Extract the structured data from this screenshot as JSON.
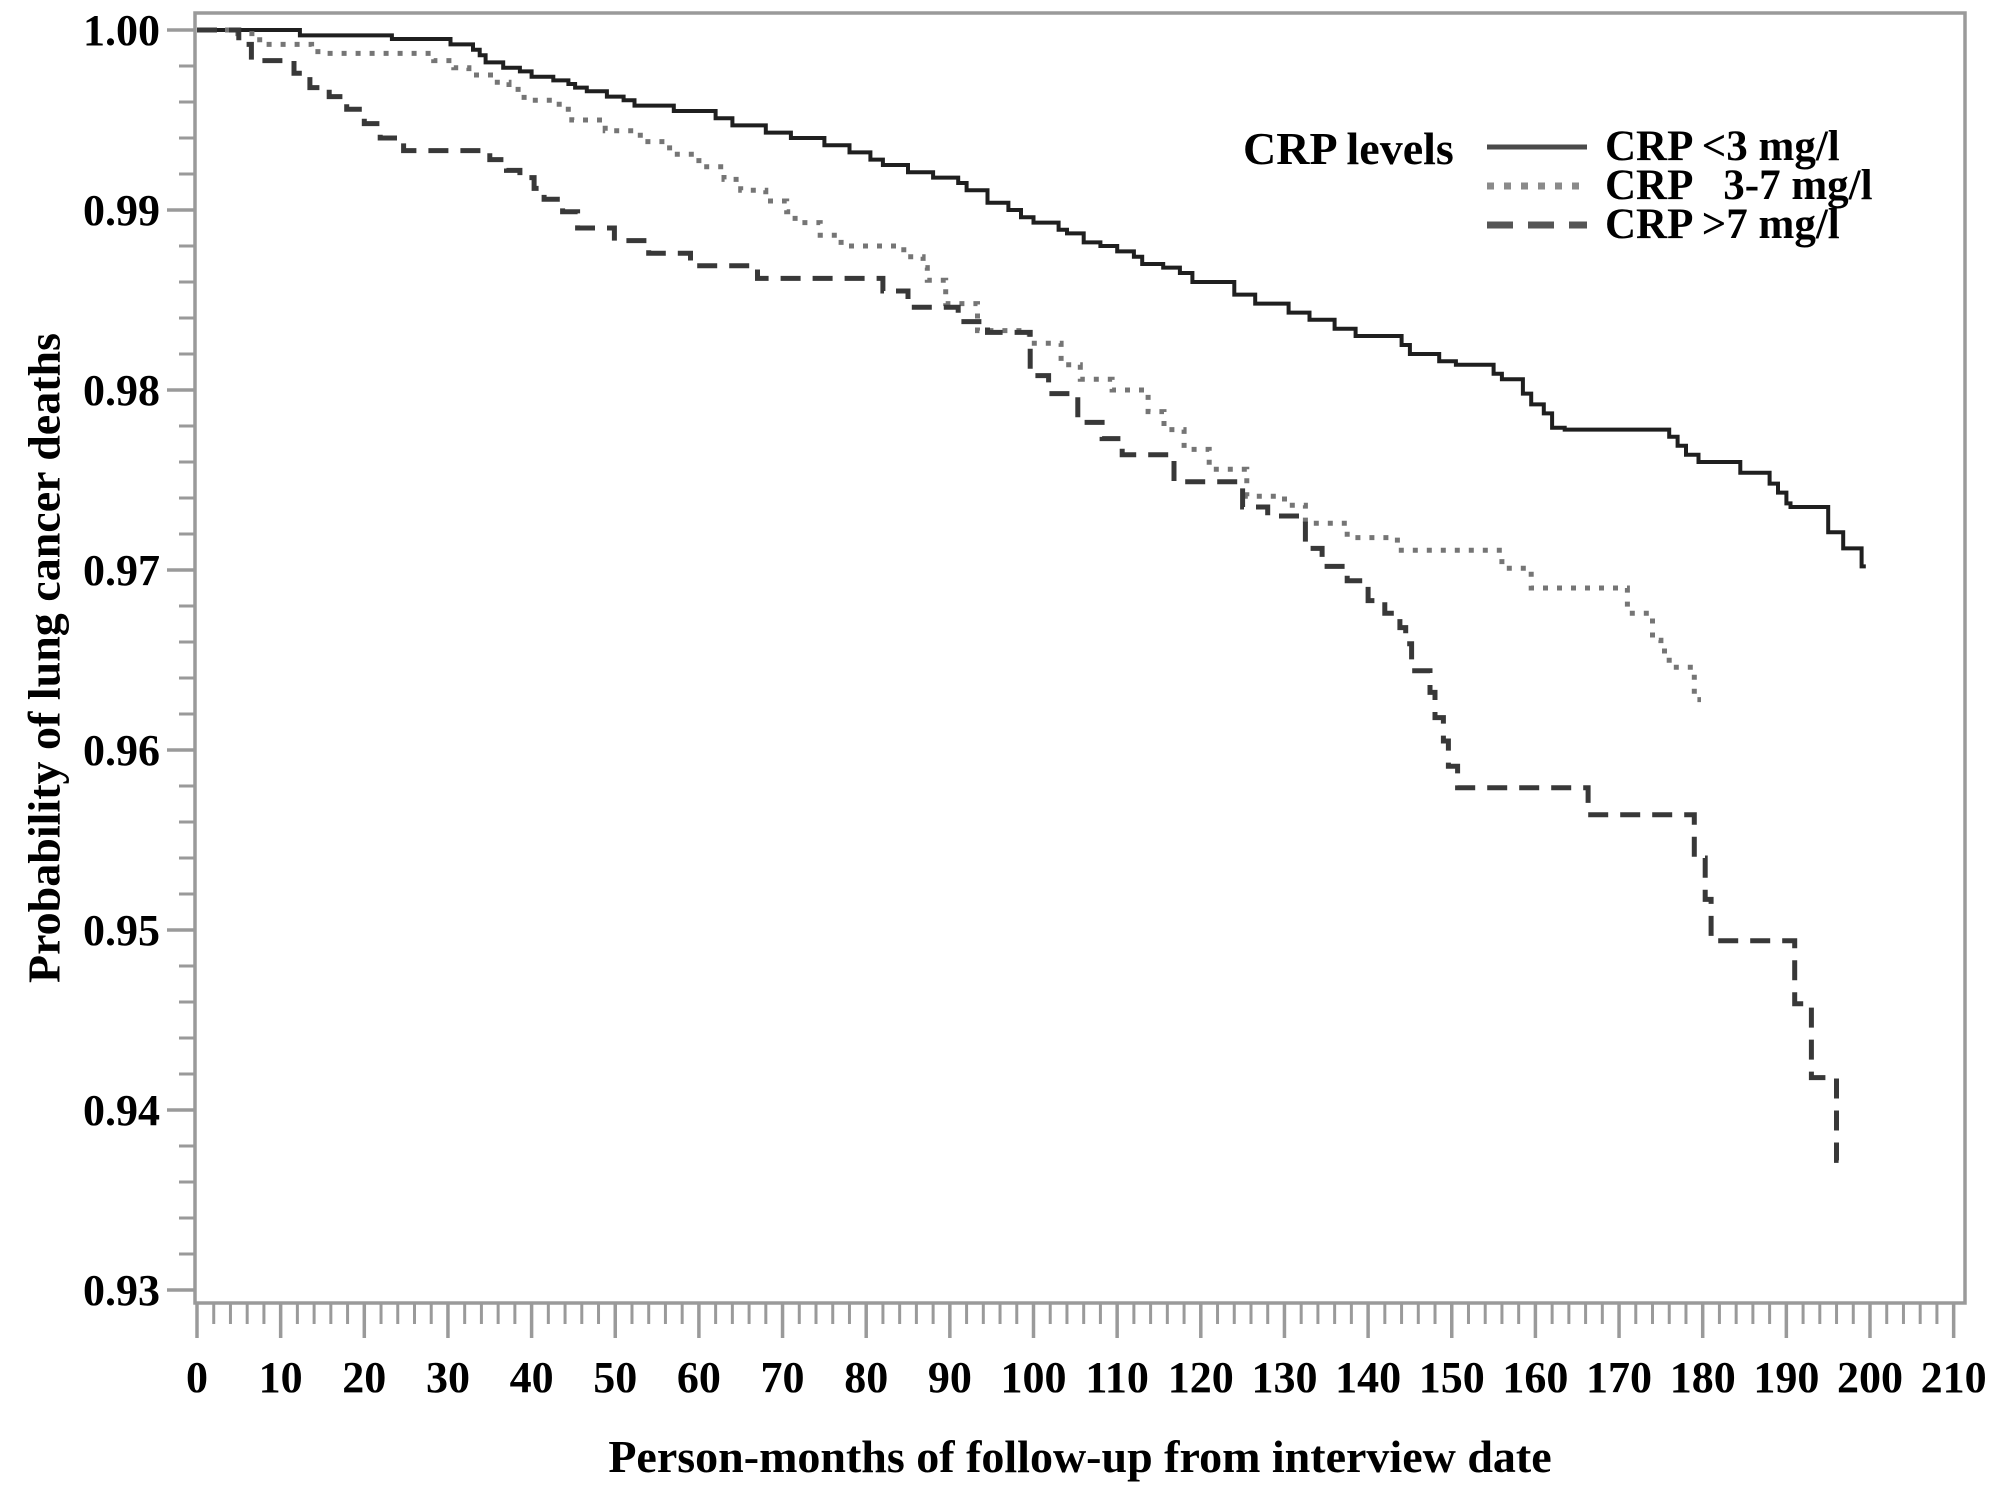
{
  "chart_data": {
    "type": "line",
    "subtype": "kaplan-meier-step",
    "title": "",
    "xlabel": "Person-months of follow-up from interview date",
    "ylabel": "Probability of lung cancer deaths",
    "legend_title": "CRP levels",
    "legend_position": "top-right",
    "grid": false,
    "xlim": [
      0,
      210
    ],
    "ylim": [
      0.93,
      1.0
    ],
    "x_major_step": 10,
    "x_minor_step": 2,
    "y_major_step": 0.01,
    "y_minor_step": 0.002,
    "axis_color": "#9a9a9a",
    "text_color": "#000000",
    "x_tick_labels": [
      "0",
      "10",
      "20",
      "30",
      "40",
      "50",
      "60",
      "70",
      "80",
      "90",
      "100",
      "110",
      "120",
      "130",
      "140",
      "150",
      "160",
      "170",
      "180",
      "190",
      "200",
      "210"
    ],
    "y_tick_labels": [
      "1.00",
      "0.99",
      "0.98",
      "0.97",
      "0.96",
      "0.95",
      "0.94",
      "0.93"
    ],
    "series": [
      {
        "id": "crp-lt3",
        "name": "CRP <3 mg/l",
        "style": "solid",
        "color": "#1f1f1f",
        "points": [
          [
            0,
            1.0
          ],
          [
            12.3,
            0.9997
          ],
          [
            23.3,
            0.9995
          ],
          [
            30.3,
            0.9992
          ],
          [
            33,
            0.9989
          ],
          [
            33.8,
            0.9986
          ],
          [
            34.5,
            0.9982
          ],
          [
            36.6,
            0.9979
          ],
          [
            38.6,
            0.9977
          ],
          [
            40,
            0.9974
          ],
          [
            42.6,
            0.9972
          ],
          [
            44.4,
            0.997
          ],
          [
            45.2,
            0.9968
          ],
          [
            46.6,
            0.9966
          ],
          [
            49,
            0.9963
          ],
          [
            51,
            0.9961
          ],
          [
            52.3,
            0.9958
          ],
          [
            57,
            0.9955
          ],
          [
            62,
            0.9951
          ],
          [
            64,
            0.9947
          ],
          [
            68,
            0.9943
          ],
          [
            71,
            0.994
          ],
          [
            75,
            0.9936
          ],
          [
            78,
            0.9932
          ],
          [
            80.5,
            0.9928
          ],
          [
            82,
            0.9925
          ],
          [
            85,
            0.9921
          ],
          [
            88,
            0.9918
          ],
          [
            91,
            0.9915
          ],
          [
            92,
            0.9911
          ],
          [
            94.5,
            0.9904
          ],
          [
            97,
            0.99
          ],
          [
            98.5,
            0.9896
          ],
          [
            100,
            0.9893
          ],
          [
            103,
            0.9889
          ],
          [
            104,
            0.9887
          ],
          [
            106,
            0.9882
          ],
          [
            108,
            0.988
          ],
          [
            110,
            0.9877
          ],
          [
            112,
            0.9874
          ],
          [
            113,
            0.987
          ],
          [
            115.5,
            0.9868
          ],
          [
            117.5,
            0.9865
          ],
          [
            119,
            0.986
          ],
          [
            124,
            0.9853
          ],
          [
            126.5,
            0.9848
          ],
          [
            130.5,
            0.9843
          ],
          [
            133,
            0.9839
          ],
          [
            136,
            0.9834
          ],
          [
            138.5,
            0.983
          ],
          [
            144,
            0.9825
          ],
          [
            145,
            0.982
          ],
          [
            148.5,
            0.9816
          ],
          [
            150.5,
            0.9814
          ],
          [
            155,
            0.9809
          ],
          [
            156,
            0.9806
          ],
          [
            158.5,
            0.9798
          ],
          [
            159.5,
            0.9792
          ],
          [
            161,
            0.9787
          ],
          [
            162,
            0.9779
          ],
          [
            163.5,
            0.9778
          ],
          [
            176,
            0.9774
          ],
          [
            177,
            0.9769
          ],
          [
            178,
            0.9764
          ],
          [
            179.5,
            0.976
          ],
          [
            184.5,
            0.9754
          ],
          [
            188,
            0.9748
          ],
          [
            189,
            0.9743
          ],
          [
            190,
            0.9737
          ],
          [
            190.5,
            0.9735
          ],
          [
            195,
            0.9721
          ],
          [
            196.8,
            0.9712
          ],
          [
            199,
            0.9702
          ],
          [
            199.5,
            0.9702
          ]
        ]
      },
      {
        "id": "crp-3to7",
        "name": "CRP   3-7 mg/l",
        "style": "dotted",
        "color": "#757575",
        "points": [
          [
            0,
            1.0
          ],
          [
            4.3,
            0.9998
          ],
          [
            7.5,
            0.9992
          ],
          [
            13.7,
            0.9988
          ],
          [
            15.3,
            0.9987
          ],
          [
            28.3,
            0.9983
          ],
          [
            30.7,
            0.9979
          ],
          [
            32.5,
            0.9975
          ],
          [
            35.5,
            0.9971
          ],
          [
            37.3,
            0.9967
          ],
          [
            39.1,
            0.9961
          ],
          [
            43.3,
            0.9956
          ],
          [
            44.8,
            0.995
          ],
          [
            48.8,
            0.9944
          ],
          [
            53,
            0.9938
          ],
          [
            56.5,
            0.9931
          ],
          [
            60,
            0.9924
          ],
          [
            63,
            0.9917
          ],
          [
            65,
            0.9911
          ],
          [
            68,
            0.9905
          ],
          [
            70.5,
            0.9899
          ],
          [
            71.5,
            0.9893
          ],
          [
            74.5,
            0.9886
          ],
          [
            77,
            0.988
          ],
          [
            84.5,
            0.9874
          ],
          [
            86.8,
            0.9868
          ],
          [
            87.3,
            0.9861
          ],
          [
            89.5,
            0.9848
          ],
          [
            93.3,
            0.9833
          ],
          [
            99.5,
            0.9826
          ],
          [
            103.3,
            0.9814
          ],
          [
            105.6,
            0.9806
          ],
          [
            109.4,
            0.98
          ],
          [
            113.7,
            0.9788
          ],
          [
            115.6,
            0.9778
          ],
          [
            118,
            0.9767
          ],
          [
            121,
            0.9756
          ],
          [
            125.5,
            0.9741
          ],
          [
            130,
            0.9736
          ],
          [
            132.5,
            0.9726
          ],
          [
            137.5,
            0.9718
          ],
          [
            143.5,
            0.9711
          ],
          [
            156,
            0.9701
          ],
          [
            159.5,
            0.969
          ],
          [
            171,
            0.9676
          ],
          [
            174,
            0.9661
          ],
          [
            175,
            0.9655
          ],
          [
            176,
            0.9646
          ],
          [
            179,
            0.9628
          ],
          [
            179.8,
            0.9628
          ]
        ]
      },
      {
        "id": "crp-gt7",
        "name": "CRP >7 mg/l",
        "style": "dashed",
        "color": "#383838",
        "points": [
          [
            0,
            1.0
          ],
          [
            5,
            0.9992
          ],
          [
            6.5,
            0.9983
          ],
          [
            11.6,
            0.9976
          ],
          [
            13.5,
            0.9968
          ],
          [
            15.8,
            0.9963
          ],
          [
            17.9,
            0.9956
          ],
          [
            20,
            0.9948
          ],
          [
            21.9,
            0.994
          ],
          [
            24.7,
            0.9933
          ],
          [
            35,
            0.9928
          ],
          [
            37,
            0.9922
          ],
          [
            38.6,
            0.9918
          ],
          [
            40.3,
            0.9912
          ],
          [
            41.5,
            0.9906
          ],
          [
            43.7,
            0.9899
          ],
          [
            45.5,
            0.989
          ],
          [
            49.9,
            0.9883
          ],
          [
            54,
            0.9876
          ],
          [
            59,
            0.9869
          ],
          [
            67,
            0.9862
          ],
          [
            82,
            0.9855
          ],
          [
            85,
            0.9846
          ],
          [
            91,
            0.9838
          ],
          [
            94.5,
            0.9832
          ],
          [
            99.6,
            0.9808
          ],
          [
            101.8,
            0.9798
          ],
          [
            105.3,
            0.9782
          ],
          [
            108.2,
            0.9773
          ],
          [
            110.6,
            0.9764
          ],
          [
            116.8,
            0.9749
          ],
          [
            125,
            0.9735
          ],
          [
            128,
            0.973
          ],
          [
            132.5,
            0.9712
          ],
          [
            134.5,
            0.9702
          ],
          [
            137.5,
            0.9694
          ],
          [
            140,
            0.9683
          ],
          [
            142,
            0.9676
          ],
          [
            143.8,
            0.9668
          ],
          [
            144.5,
            0.9659
          ],
          [
            145.2,
            0.9644
          ],
          [
            147.4,
            0.9632
          ],
          [
            148,
            0.9618
          ],
          [
            149,
            0.9605
          ],
          [
            149.6,
            0.9591
          ],
          [
            150.7,
            0.9579
          ],
          [
            166.3,
            0.9564
          ],
          [
            179,
            0.954
          ],
          [
            180.3,
            0.9517
          ],
          [
            181,
            0.9494
          ],
          [
            191,
            0.9459
          ],
          [
            193,
            0.9418
          ],
          [
            196,
            0.9372
          ],
          [
            196.6,
            0.9372
          ]
        ]
      }
    ]
  }
}
